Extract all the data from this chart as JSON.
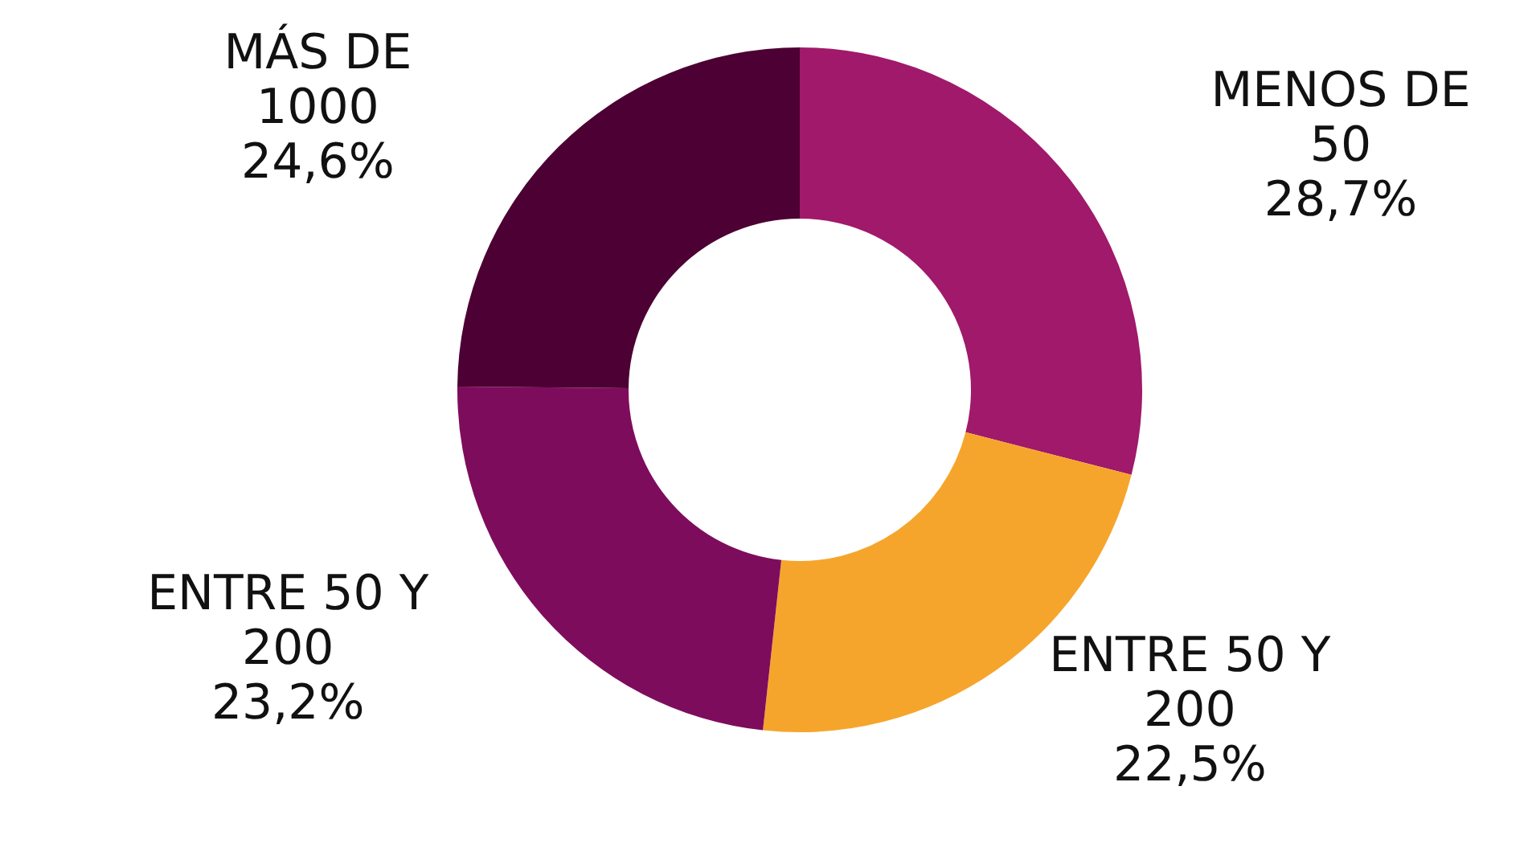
{
  "chart_data": {
    "type": "donut",
    "categories": [
      "MENOS DE 50",
      "ENTRE 50 Y 200",
      "ENTRE 50 Y 200",
      "MÁS DE 1000"
    ],
    "values": [
      28.7,
      22.5,
      23.2,
      24.6
    ],
    "value_labels": [
      "28,7%",
      "22,5%",
      "23,2%",
      "24,6%"
    ],
    "colors": [
      "#a0196a",
      "#f6a52c",
      "#7e0c5c",
      "#4c0033"
    ],
    "legend": false
  }
}
